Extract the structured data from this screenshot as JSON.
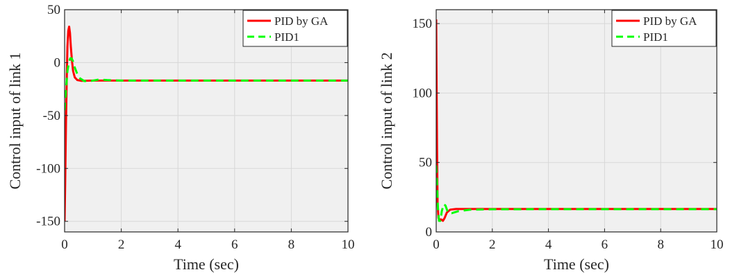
{
  "colors": {
    "plot_background": "#f0f0f0",
    "grid": "#d7d7d7",
    "axis": "#262626",
    "pid_ga": "#ff0000",
    "pid1": "#00ff00"
  },
  "chart_data": [
    {
      "type": "line",
      "xlabel": "Time (sec)",
      "ylabel": "Control input of link 1",
      "xlim": [
        0,
        10
      ],
      "ylim": [
        -160,
        50
      ],
      "xticks": [
        0,
        2,
        4,
        6,
        8,
        10
      ],
      "xtick_labels": [
        "0",
        "2",
        "4",
        "6",
        "8",
        "10"
      ],
      "yticks": [
        -150,
        -100,
        -50,
        0,
        50
      ],
      "ytick_labels": [
        "-150",
        "-100",
        "-50",
        "0",
        "50"
      ],
      "grid": true,
      "legend_position": "top-right",
      "series": [
        {
          "name": "PID by GA",
          "style": "solid",
          "color": "#ff0000",
          "points": [
            [
              0,
              -150
            ],
            [
              0.02,
              -115
            ],
            [
              0.05,
              -55
            ],
            [
              0.08,
              -10
            ],
            [
              0.1,
              15
            ],
            [
              0.13,
              30
            ],
            [
              0.16,
              34
            ],
            [
              0.19,
              28
            ],
            [
              0.22,
              15
            ],
            [
              0.26,
              2
            ],
            [
              0.3,
              -8
            ],
            [
              0.36,
              -14
            ],
            [
              0.45,
              -16.5
            ],
            [
              0.6,
              -17.2
            ],
            [
              1,
              -17
            ],
            [
              2,
              -17
            ],
            [
              4,
              -17
            ],
            [
              6,
              -17
            ],
            [
              8,
              -17
            ],
            [
              10,
              -17
            ]
          ]
        },
        {
          "name": "PID1",
          "style": "dashed",
          "color": "#00ff00",
          "points": [
            [
              0,
              -45
            ],
            [
              0.05,
              -25
            ],
            [
              0.1,
              -8
            ],
            [
              0.15,
              0
            ],
            [
              0.2,
              4
            ],
            [
              0.25,
              4
            ],
            [
              0.3,
              1
            ],
            [
              0.35,
              -4
            ],
            [
              0.45,
              -11
            ],
            [
              0.55,
              -15
            ],
            [
              0.7,
              -17.5
            ],
            [
              0.9,
              -17.5
            ],
            [
              1.2,
              -16
            ],
            [
              1.5,
              -16.5
            ],
            [
              2,
              -17
            ],
            [
              4,
              -17
            ],
            [
              6,
              -17
            ],
            [
              8,
              -17
            ],
            [
              10,
              -17
            ]
          ]
        }
      ]
    },
    {
      "type": "line",
      "xlabel": "Time (sec)",
      "ylabel": "Control input of link 2",
      "xlim": [
        0,
        10
      ],
      "ylim": [
        0,
        160
      ],
      "xticks": [
        0,
        2,
        4,
        6,
        8,
        10
      ],
      "xtick_labels": [
        "0",
        "2",
        "4",
        "6",
        "8",
        "10"
      ],
      "yticks": [
        0,
        50,
        100,
        150
      ],
      "ytick_labels": [
        "0",
        "50",
        "100",
        "150"
      ],
      "grid": true,
      "legend_position": "top-right",
      "series": [
        {
          "name": "PID by GA",
          "style": "solid",
          "color": "#ff0000",
          "points": [
            [
              0,
              153
            ],
            [
              0.01,
              120
            ],
            [
              0.03,
              60
            ],
            [
              0.05,
              20
            ],
            [
              0.08,
              10
            ],
            [
              0.12,
              9
            ],
            [
              0.18,
              9
            ],
            [
              0.24,
              8
            ],
            [
              0.3,
              10
            ],
            [
              0.38,
              14
            ],
            [
              0.5,
              16
            ],
            [
              0.7,
              16.5
            ],
            [
              1,
              16.5
            ],
            [
              2,
              16.5
            ],
            [
              4,
              16.5
            ],
            [
              6,
              16.5
            ],
            [
              8,
              16.5
            ],
            [
              10,
              16.5
            ]
          ]
        },
        {
          "name": "PID1",
          "style": "dashed",
          "color": "#00ff00",
          "points": [
            [
              0,
              48
            ],
            [
              0.03,
              35
            ],
            [
              0.06,
              18
            ],
            [
              0.1,
              8
            ],
            [
              0.15,
              8
            ],
            [
              0.2,
              15
            ],
            [
              0.27,
              20
            ],
            [
              0.33,
              19
            ],
            [
              0.42,
              14
            ],
            [
              0.55,
              13.5
            ],
            [
              0.8,
              15
            ],
            [
              1.2,
              16
            ],
            [
              2,
              16.3
            ],
            [
              4,
              16.4
            ],
            [
              6,
              16.4
            ],
            [
              8,
              16.4
            ],
            [
              10,
              16.4
            ]
          ]
        }
      ]
    }
  ]
}
